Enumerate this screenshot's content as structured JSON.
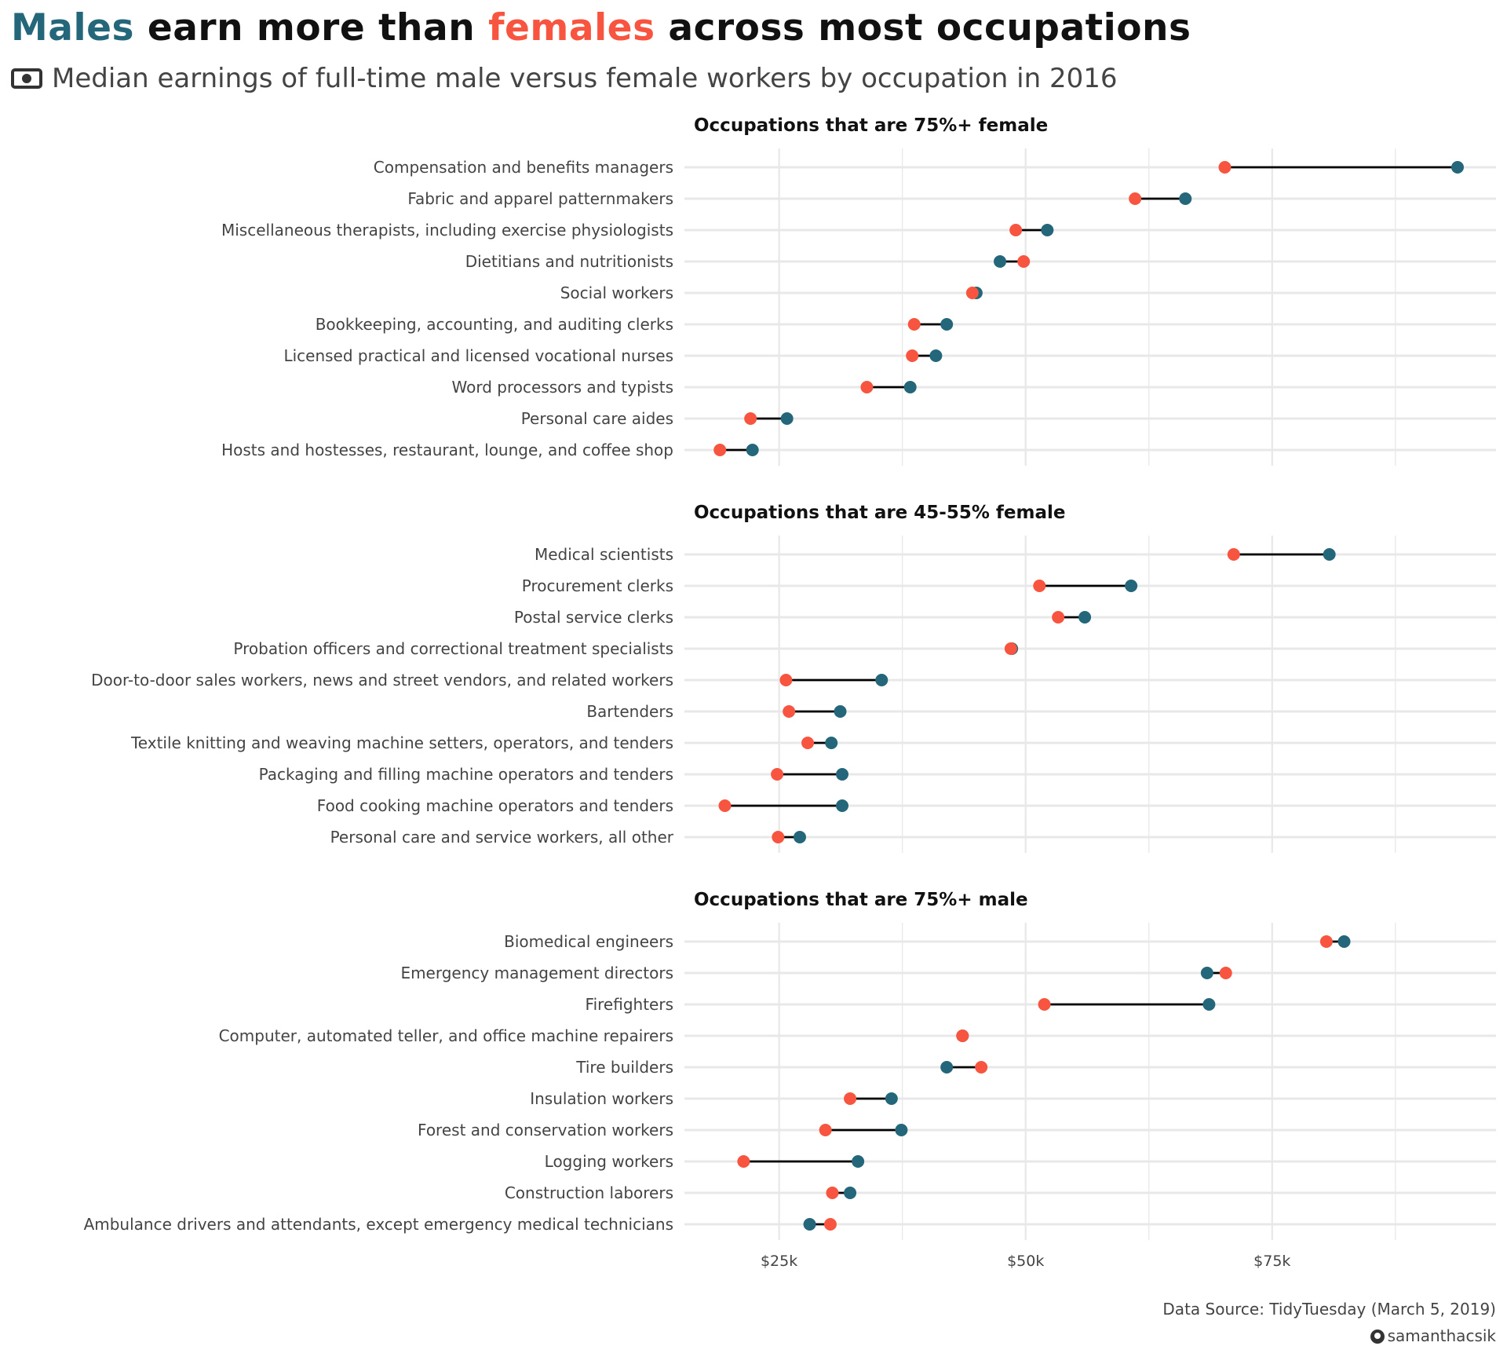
{
  "title": {
    "male_word": "Males",
    "middle": " earn more than ",
    "female_word": "females",
    "end": " across most occupations"
  },
  "subtitle": {
    "icon": "money-bill-icon",
    "text": "Median earnings of full-time male versus female workers by occupation in 2016"
  },
  "caption": {
    "source": "Data Source: TidyTuesday (March 5, 2019)",
    "handle_icon": "github-icon",
    "handle": "samanthacsik"
  },
  "colors": {
    "male": "#24677A",
    "female": "#F7553F",
    "segment": "#000000",
    "grid": "#E8E8E8"
  },
  "chart_data": {
    "type": "dumbbell",
    "title": "Males earn more than females across most occupations",
    "subtitle": "Median earnings of full-time male versus female workers by occupation in 2016",
    "xlabel": "",
    "ylabel": "",
    "xlim": [
      15.4,
      97.7
    ],
    "units": "thousands USD",
    "x_ticks": [
      {
        "value": 25,
        "label": "$25k"
      },
      {
        "value": 50,
        "label": "$50k"
      },
      {
        "value": 75,
        "label": "$75k"
      }
    ],
    "minor_grid": [
      37.5,
      62.5,
      87.5
    ],
    "grid": true,
    "legend": "none (encoded in title colors)",
    "series_names": [
      "Male",
      "Female"
    ],
    "panels": [
      {
        "title": "Occupations that are 75%+ female",
        "rows": [
          {
            "occupation": "Compensation and benefits managers",
            "male": 93.8,
            "female": 70.2
          },
          {
            "occupation": "Fabric and apparel patternmakers",
            "male": 66.2,
            "female": 61.1
          },
          {
            "occupation": "Miscellaneous therapists, including exercise physiologists",
            "male": 52.2,
            "female": 49.0
          },
          {
            "occupation": "Dietitians and nutritionists",
            "male": 47.4,
            "female": 49.8
          },
          {
            "occupation": "Social workers",
            "male": 45.0,
            "female": 44.6
          },
          {
            "occupation": "Bookkeeping, accounting, and auditing clerks",
            "male": 42.0,
            "female": 38.7
          },
          {
            "occupation": "Licensed practical and licensed vocational nurses",
            "male": 40.9,
            "female": 38.5
          },
          {
            "occupation": "Word processors and typists",
            "male": 38.3,
            "female": 33.9
          },
          {
            "occupation": "Personal care aides",
            "male": 25.8,
            "female": 22.1
          },
          {
            "occupation": "Hosts and hostesses, restaurant, lounge, and coffee shop",
            "male": 22.3,
            "female": 19.0
          }
        ]
      },
      {
        "title": "Occupations that are 45-55% female",
        "rows": [
          {
            "occupation": "Medical scientists",
            "male": 80.8,
            "female": 71.1
          },
          {
            "occupation": "Procurement clerks",
            "male": 60.7,
            "female": 51.4
          },
          {
            "occupation": "Postal service clerks",
            "male": 56.0,
            "female": 53.3
          },
          {
            "occupation": "Probation officers and correctional treatment specialists",
            "male": 48.6,
            "female": 48.5
          },
          {
            "occupation": "Door-to-door sales workers, news and street vendors, and related workers",
            "male": 35.4,
            "female": 25.7
          },
          {
            "occupation": "Bartenders",
            "male": 31.2,
            "female": 26.0
          },
          {
            "occupation": "Textile knitting and weaving machine setters, operators, and tenders",
            "male": 30.3,
            "female": 27.9
          },
          {
            "occupation": "Packaging and filling machine operators and tenders",
            "male": 31.4,
            "female": 24.8
          },
          {
            "occupation": "Food cooking machine operators and tenders",
            "male": 31.4,
            "female": 19.5
          },
          {
            "occupation": "Personal care and service workers, all other",
            "male": 27.1,
            "female": 24.9
          }
        ]
      },
      {
        "title": "Occupations that are 75%+ male",
        "rows": [
          {
            "occupation": "Biomedical engineers",
            "male": 82.3,
            "female": 80.5
          },
          {
            "occupation": "Emergency management directors",
            "male": 68.4,
            "female": 70.3
          },
          {
            "occupation": "Firefighters",
            "male": 68.6,
            "female": 51.9
          },
          {
            "occupation": "Computer, automated teller, and office machine repairers",
            "male": 43.6,
            "female": 43.6
          },
          {
            "occupation": "Tire builders",
            "male": 42.0,
            "female": 45.5
          },
          {
            "occupation": "Insulation workers",
            "male": 36.4,
            "female": 32.2
          },
          {
            "occupation": "Forest and conservation workers",
            "male": 37.4,
            "female": 29.7
          },
          {
            "occupation": "Logging workers",
            "male": 33.0,
            "female": 21.4
          },
          {
            "occupation": "Construction laborers",
            "male": 32.2,
            "female": 30.4
          },
          {
            "occupation": "Ambulance drivers and attendants, except emergency medical technicians",
            "male": 28.1,
            "female": 30.2
          }
        ]
      }
    ]
  }
}
